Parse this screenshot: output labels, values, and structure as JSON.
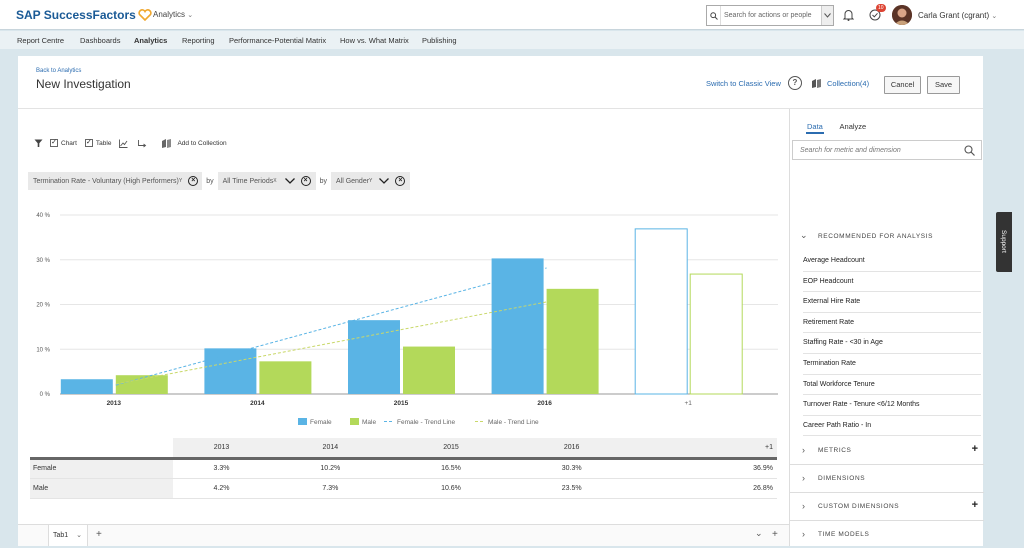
{
  "header": {
    "brand": "SAP SuccessFactors",
    "app_menu": "Analytics",
    "search_placeholder": "Search for actions or people",
    "notification_count": "10",
    "user_name": "Carla Grant (cgrant)"
  },
  "nav": {
    "items": [
      "Report Centre",
      "Dashboards",
      "Analytics",
      "Reporting",
      "Performance-Potential Matrix",
      "How vs. What Matrix",
      "Publishing"
    ],
    "active": "Analytics"
  },
  "page": {
    "back_link": "Back to Analytics",
    "title": "New Investigation",
    "classic_view": "Switch to Classic View",
    "collection": "Collection(4)",
    "cancel": "Cancel",
    "save": "Save"
  },
  "toolbar": {
    "chart_label": "Chart",
    "table_label": "Table",
    "add_to_collection": "Add to Collection",
    "chart_checked": true,
    "table_checked": true
  },
  "filters": {
    "metric": "Termination Rate - Voluntary (High Performers)",
    "by1": "by",
    "time": "All Time Periods",
    "by2": "by",
    "dimension": "All Gender",
    "sup": "Y",
    "time_sup": "X"
  },
  "chart_data": {
    "type": "bar",
    "categories": [
      "2013",
      "2014",
      "2015",
      "2016",
      "+1"
    ],
    "series": [
      {
        "name": "Female",
        "values": [
          3.3,
          10.2,
          16.5,
          30.3,
          36.9
        ],
        "color": "#5ab4e5"
      },
      {
        "name": "Male",
        "values": [
          4.2,
          7.3,
          10.6,
          23.5,
          26.8
        ],
        "color": "#b3d95a"
      }
    ],
    "trend_lines": [
      {
        "name": "Female - Trend Line",
        "color": "#5ab4e5"
      },
      {
        "name": "Male - Trend Line",
        "color": "#c9d86a"
      }
    ],
    "forecast_category": "+1",
    "yticks": [
      "0 %",
      "10 %",
      "20 %",
      "30 %",
      "40 %"
    ],
    "ylim": [
      0,
      40
    ]
  },
  "table": {
    "columns": [
      "2013",
      "2014",
      "2015",
      "2016",
      "+1"
    ],
    "rows": [
      {
        "label": "Female",
        "values": [
          "3.3%",
          "10.2%",
          "16.5%",
          "30.3%",
          "36.9%"
        ]
      },
      {
        "label": "Male",
        "values": [
          "4.2%",
          "7.3%",
          "10.6%",
          "23.5%",
          "26.8%"
        ]
      }
    ]
  },
  "tabs": {
    "tab1": "Tab1"
  },
  "right_panel": {
    "tab_data": "Data",
    "tab_analyze": "Analyze",
    "search_placeholder": "Search for metric and dimension",
    "recommended_title": "RECOMMENDED FOR ANALYSIS",
    "recommended": [
      "Average Headcount",
      "EOP Headcount",
      "External Hire Rate",
      "Retirement Rate",
      "Staffing Rate - <30 in Age",
      "Termination Rate",
      "Total Workforce Tenure",
      "Turnover Rate - Tenure <6/12 Months",
      "Career Path Ratio - In"
    ],
    "groups": [
      "METRICS",
      "DIMENSIONS",
      "CUSTOM DIMENSIONS",
      "TIME MODELS"
    ]
  },
  "support": "Support",
  "colors": {
    "brand": "#1a5a96",
    "link": "#2b6cb0",
    "female": "#5ab4e5",
    "male": "#b3d95a"
  }
}
